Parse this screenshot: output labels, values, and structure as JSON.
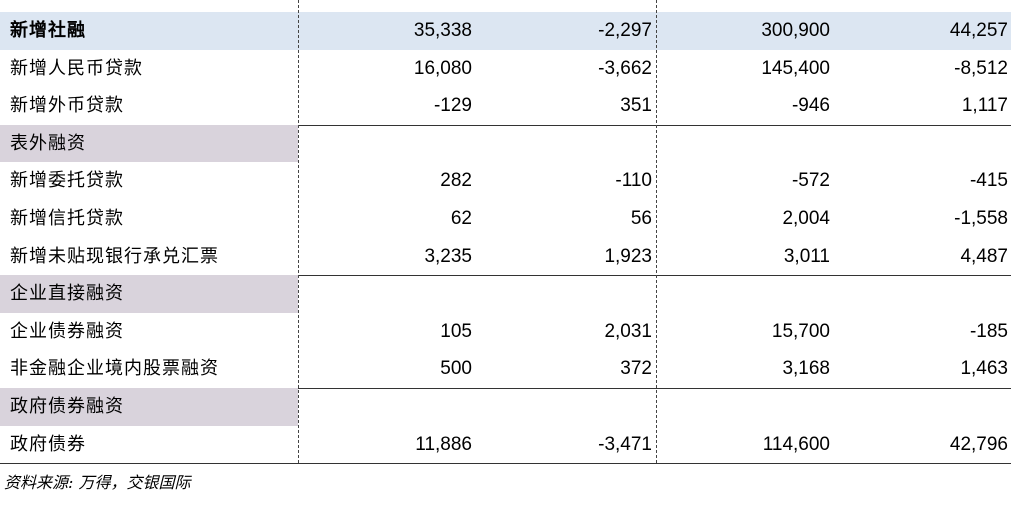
{
  "table": {
    "rows": [
      {
        "kind": "total",
        "label": "新增社融",
        "values": [
          "35,338",
          "-2,297",
          "300,900",
          "44,257"
        ]
      },
      {
        "kind": "item",
        "label": "新增人民币贷款",
        "values": [
          "16,080",
          "-3,662",
          "145,400",
          "-8,512"
        ]
      },
      {
        "kind": "item",
        "label": "新增外币贷款",
        "values": [
          "-129",
          "351",
          "-946",
          "1,117"
        ],
        "rule": true
      },
      {
        "kind": "section",
        "label": "表外融资",
        "values": []
      },
      {
        "kind": "item",
        "label": "新增委托贷款",
        "values": [
          "282",
          "-110",
          "-572",
          "-415"
        ]
      },
      {
        "kind": "item",
        "label": "新增信托贷款",
        "values": [
          "62",
          "56",
          "2,004",
          "-1,558"
        ]
      },
      {
        "kind": "item",
        "label": "新增未贴现银行承兑汇票",
        "values": [
          "3,235",
          "1,923",
          "3,011",
          "4,487"
        ],
        "rule": true
      },
      {
        "kind": "section",
        "label": "企业直接融资",
        "values": []
      },
      {
        "kind": "item",
        "label": "企业债券融资",
        "values": [
          "105",
          "2,031",
          "15,700",
          "-185"
        ]
      },
      {
        "kind": "item",
        "label": "非金融企业境内股票融资",
        "values": [
          "500",
          "372",
          "3,168",
          "1,463"
        ],
        "rule": true
      },
      {
        "kind": "section",
        "label": "政府债券融资",
        "values": []
      },
      {
        "kind": "item",
        "label": "政府债券",
        "values": [
          "11,886",
          "-3,471",
          "114,600",
          "42,796"
        ],
        "rule": true
      }
    ]
  },
  "source": "资料来源: 万得，交银国际"
}
